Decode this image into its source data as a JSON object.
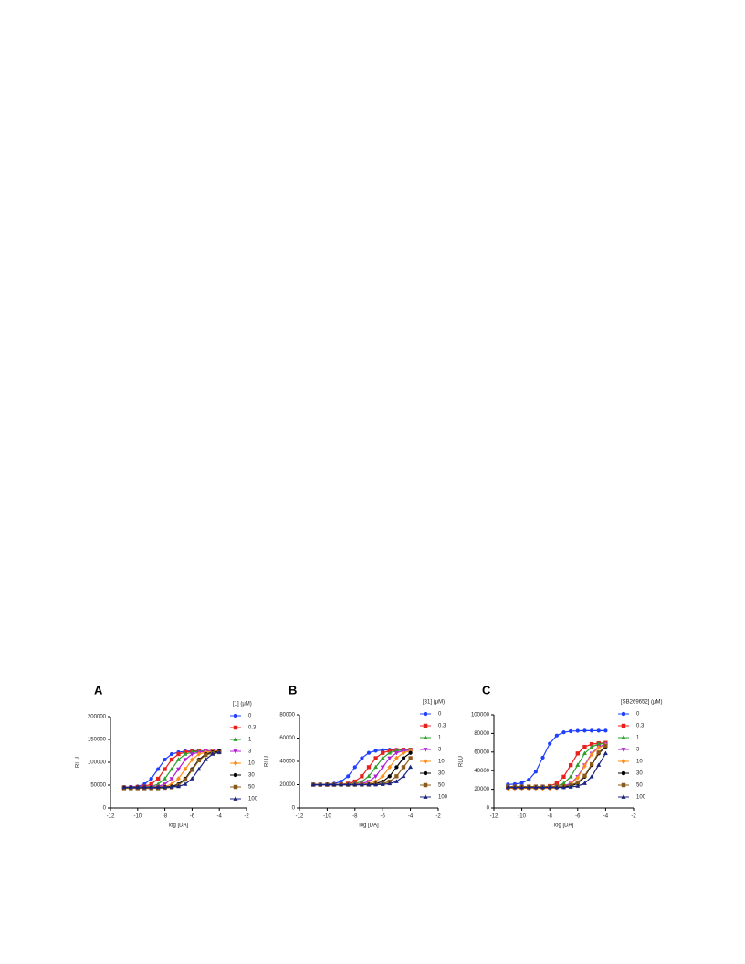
{
  "chart_data": [
    {
      "type": "line",
      "panel": "A",
      "legend_title": "[1] (μM)",
      "xlabel": "log [DA]",
      "ylabel": "RLU",
      "xlim": [
        -12,
        -2
      ],
      "xticks": [
        -12,
        -10,
        -8,
        -6,
        -4,
        -2
      ],
      "ylim": [
        0,
        200000
      ],
      "yticks": [
        0,
        50000,
        100000,
        150000,
        200000
      ],
      "x": [
        -11,
        -10.5,
        -10,
        -9.5,
        -9,
        -8.5,
        -8,
        -7.5,
        -7,
        -6.5,
        -6,
        -5.5,
        -5,
        -4.5,
        -4
      ],
      "series": [
        {
          "name": "0",
          "color": "#1f3fff",
          "marker": "circle",
          "values": [
            45000,
            46000,
            47000,
            52000,
            64000,
            85000,
            106000,
            118000,
            122000,
            124000,
            125000,
            125000,
            125000,
            125000,
            125000
          ]
        },
        {
          "name": "0.3",
          "color": "#e8201c",
          "marker": "square",
          "values": [
            45000,
            45000,
            46000,
            47000,
            52000,
            64000,
            85000,
            106000,
            118000,
            122000,
            124000,
            125000,
            125000,
            125000,
            125000
          ]
        },
        {
          "name": "1",
          "color": "#2ca02c",
          "marker": "triangle",
          "values": [
            45000,
            45000,
            45000,
            46000,
            47000,
            52000,
            64000,
            85000,
            106000,
            118000,
            122000,
            124000,
            125000,
            125000,
            125000
          ]
        },
        {
          "name": "3",
          "color": "#b41fd6",
          "marker": "triangle-down",
          "values": [
            45000,
            45000,
            45000,
            45000,
            46000,
            47000,
            52000,
            64000,
            85000,
            106000,
            118000,
            122000,
            124000,
            125000,
            125000
          ]
        },
        {
          "name": "10",
          "color": "#ff8c1a",
          "marker": "diamond",
          "values": [
            45000,
            45000,
            45000,
            45000,
            45000,
            46000,
            47000,
            52000,
            64000,
            85000,
            106000,
            118000,
            122000,
            124000,
            125000
          ]
        },
        {
          "name": "30",
          "color": "#000000",
          "marker": "circle",
          "values": [
            45000,
            45000,
            45000,
            45000,
            45000,
            45000,
            46000,
            47000,
            52000,
            64000,
            85000,
            106000,
            118000,
            122000,
            124000
          ]
        },
        {
          "name": "50",
          "color": "#8b5a1a",
          "marker": "square",
          "values": [
            43000,
            43000,
            43000,
            43000,
            43000,
            43000,
            44000,
            45000,
            50000,
            62000,
            83000,
            104000,
            116000,
            120000,
            122000
          ]
        },
        {
          "name": "100",
          "color": "#1a237e",
          "marker": "triangle",
          "values": [
            45000,
            45000,
            45000,
            45000,
            45000,
            45000,
            45000,
            46000,
            47000,
            52000,
            64000,
            85000,
            106000,
            118000,
            122000
          ]
        }
      ]
    },
    {
      "type": "line",
      "panel": "B",
      "legend_title": "[31] (μM)",
      "xlabel": "log [DA]",
      "ylabel": "RLU",
      "xlim": [
        -12,
        -2
      ],
      "xticks": [
        -12,
        -10,
        -8,
        -6,
        -4,
        -2
      ],
      "ylim": [
        0,
        80000
      ],
      "yticks": [
        0,
        20000,
        40000,
        60000,
        80000
      ],
      "x": [
        -11,
        -10.5,
        -10,
        -9.5,
        -9,
        -8.5,
        -8,
        -7.5,
        -7,
        -6.5,
        -6,
        -5.5,
        -5,
        -4.5,
        -4
      ],
      "series": [
        {
          "name": "0",
          "color": "#1f3fff",
          "marker": "circle",
          "values": [
            20000,
            20000,
            20300,
            20900,
            22700,
            27200,
            35000,
            42800,
            47300,
            49100,
            49700,
            50000,
            50000,
            50000,
            50000
          ]
        },
        {
          "name": "0.3",
          "color": "#e8201c",
          "marker": "square",
          "values": [
            20000,
            20000,
            20000,
            20000,
            20300,
            20900,
            22700,
            27200,
            35000,
            42800,
            47300,
            49100,
            49700,
            50000,
            50000
          ]
        },
        {
          "name": "1",
          "color": "#2ca02c",
          "marker": "triangle",
          "values": [
            20000,
            20000,
            20000,
            20000,
            20000,
            20300,
            20900,
            22700,
            27200,
            35000,
            42800,
            47300,
            49100,
            49700,
            50000
          ]
        },
        {
          "name": "3",
          "color": "#b41fd6",
          "marker": "triangle-down",
          "values": [
            20000,
            20000,
            20000,
            20000,
            20000,
            20000,
            20300,
            20900,
            22700,
            27200,
            35000,
            42800,
            47300,
            49100,
            49700
          ]
        },
        {
          "name": "10",
          "color": "#ff8c1a",
          "marker": "diamond",
          "values": [
            20000,
            20000,
            20000,
            20000,
            20000,
            20000,
            20000,
            20300,
            20900,
            22700,
            27200,
            35000,
            42800,
            47300,
            49100
          ]
        },
        {
          "name": "30",
          "color": "#000000",
          "marker": "circle",
          "values": [
            20000,
            20000,
            20000,
            20000,
            20000,
            20000,
            20000,
            20000,
            20300,
            20900,
            22700,
            27200,
            35000,
            42800,
            47300
          ]
        },
        {
          "name": "50",
          "color": "#8b5a1a",
          "marker": "square",
          "values": [
            20000,
            20000,
            20000,
            20000,
            20000,
            20000,
            20000,
            20000,
            20000,
            20300,
            20900,
            22700,
            27200,
            35000,
            42800
          ]
        },
        {
          "name": "100",
          "color": "#1a237e",
          "marker": "triangle",
          "values": [
            20000,
            20000,
            20000,
            20000,
            20000,
            20000,
            20000,
            20000,
            20000,
            20000,
            20300,
            20900,
            22700,
            27200,
            35000
          ]
        }
      ]
    },
    {
      "type": "line",
      "panel": "C",
      "legend_title": "[SB269652] (μM)",
      "xlabel": "log [DA]",
      "ylabel": "RLU",
      "xlim": [
        -12,
        -2
      ],
      "xticks": [
        -12,
        -10,
        -8,
        -6,
        -4,
        -2
      ],
      "ylim": [
        0,
        100000
      ],
      "yticks": [
        0,
        20000,
        40000,
        60000,
        80000,
        100000
      ],
      "x": [
        -11,
        -10.5,
        -10,
        -9.5,
        -9,
        -8.5,
        -8,
        -7.5,
        -7,
        -6.5,
        -6,
        -5.5,
        -5,
        -4.5,
        -4
      ],
      "series": [
        {
          "name": "0",
          "color": "#1f3fff",
          "marker": "circle",
          "values": [
            25200,
            25600,
            26800,
            30300,
            38900,
            54000,
            69100,
            77700,
            81200,
            82400,
            82800,
            83000,
            83000,
            83000,
            83000
          ]
        },
        {
          "name": "0.3",
          "color": "#e8201c",
          "marker": "square",
          "values": [
            22000,
            22000,
            22000,
            22000,
            22000,
            22500,
            23500,
            26400,
            33500,
            46000,
            58500,
            65600,
            68500,
            69500,
            69900
          ]
        },
        {
          "name": "1",
          "color": "#2ca02c",
          "marker": "triangle",
          "values": [
            22000,
            22000,
            22000,
            22000,
            22000,
            22000,
            22500,
            23500,
            26400,
            33500,
            46000,
            58500,
            65600,
            68500,
            69500
          ]
        },
        {
          "name": "3",
          "color": "#b41fd6",
          "marker": "triangle-down",
          "values": [
            22000,
            22000,
            22000,
            22000,
            22000,
            22000,
            22000,
            22500,
            23500,
            26400,
            33500,
            46000,
            58500,
            65600,
            68500
          ]
        },
        {
          "name": "10",
          "color": "#ff8c1a",
          "marker": "diamond",
          "values": [
            21000,
            21000,
            21000,
            21000,
            21000,
            21000,
            21000,
            21500,
            22500,
            25400,
            32500,
            45000,
            57500,
            64600,
            67500
          ]
        },
        {
          "name": "30",
          "color": "#000000",
          "marker": "circle",
          "values": [
            22000,
            22000,
            22000,
            22000,
            22000,
            22000,
            22000,
            22000,
            22500,
            23500,
            26400,
            33500,
            46000,
            58500,
            65600
          ]
        },
        {
          "name": "50",
          "color": "#8b5a1a",
          "marker": "square",
          "values": [
            23000,
            23000,
            23000,
            23000,
            23000,
            23000,
            23000,
            23000,
            23500,
            24500,
            27400,
            34500,
            47000,
            59500,
            66600
          ]
        },
        {
          "name": "100",
          "color": "#1a237e",
          "marker": "triangle",
          "values": [
            22000,
            22000,
            22000,
            22000,
            22000,
            22000,
            22000,
            22000,
            22000,
            22500,
            23500,
            26400,
            33500,
            46000,
            58500
          ]
        }
      ]
    }
  ]
}
